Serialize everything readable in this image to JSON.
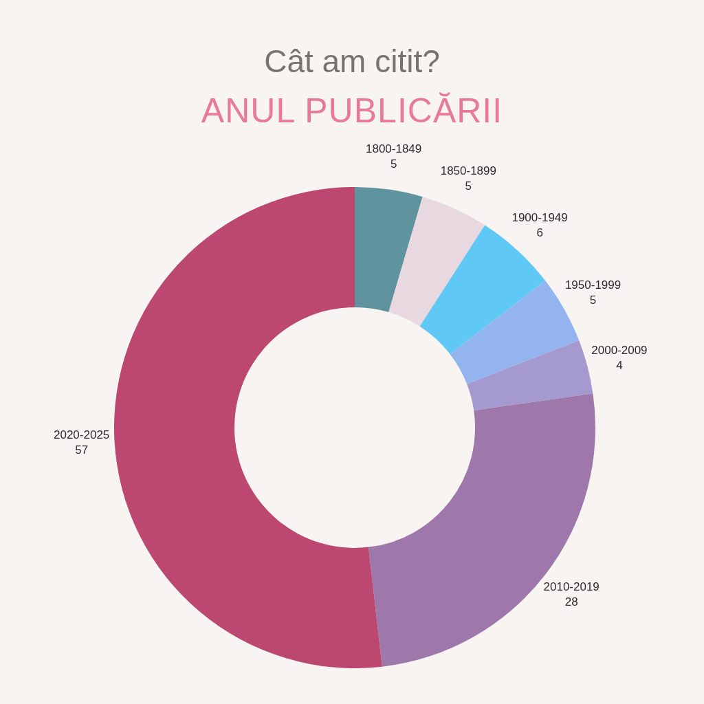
{
  "chart_data": {
    "type": "donut",
    "title": "Cât am citit?",
    "subtitle": "ANUL PUBLICĂRII",
    "categories": [
      "1800-1849",
      "1850-1899",
      "1900-1949",
      "1950-1999",
      "2000-2009",
      "2010-2019",
      "2020-2025"
    ],
    "values": [
      5,
      5,
      6,
      5,
      4,
      28,
      57
    ],
    "colors": [
      "#5f939e",
      "#e8d8df",
      "#5fc8f5",
      "#94b4f0",
      "#a49ad0",
      "#9e78aa",
      "#bc4770"
    ],
    "data_labels": true,
    "legend": false
  }
}
